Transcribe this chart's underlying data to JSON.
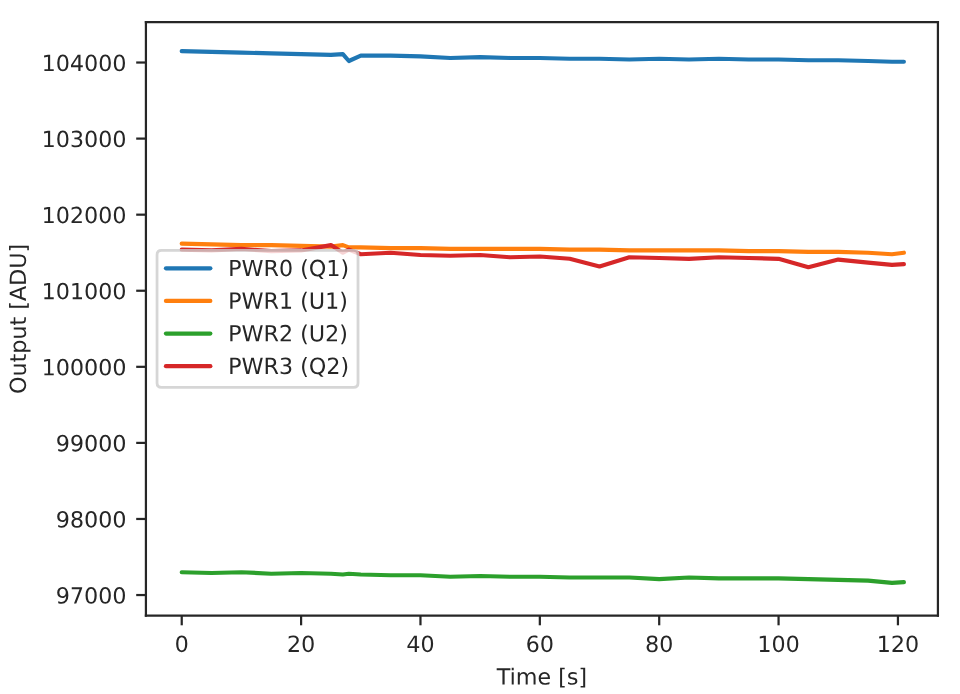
{
  "chart_data": {
    "type": "line",
    "xlabel": "Time [s]",
    "ylabel": "Output [ADU]",
    "xlim": [
      -6,
      126.7
    ],
    "ylim": [
      96730,
      104530
    ],
    "xticks": [
      0,
      20,
      40,
      60,
      80,
      100,
      120
    ],
    "yticks": [
      97000,
      98000,
      99000,
      100000,
      101000,
      102000,
      103000,
      104000
    ],
    "legend": "left",
    "grid": false,
    "x": [
      0,
      5,
      10,
      15,
      20,
      25,
      27,
      28,
      30,
      35,
      40,
      45,
      50,
      55,
      60,
      65,
      70,
      75,
      80,
      85,
      90,
      95,
      100,
      105,
      110,
      115,
      119,
      121
    ],
    "series": [
      {
        "name": "PWR0 (Q1)",
        "color": "#1f77b4",
        "values": [
          104150,
          104140,
          104130,
          104120,
          104110,
          104100,
          104110,
          104020,
          104090,
          104090,
          104080,
          104060,
          104070,
          104060,
          104060,
          104050,
          104050,
          104040,
          104050,
          104040,
          104050,
          104040,
          104040,
          104030,
          104030,
          104020,
          104010,
          104010
        ]
      },
      {
        "name": "PWR1 (U1)",
        "color": "#ff7f0e",
        "values": [
          101620,
          101610,
          101600,
          101600,
          101590,
          101580,
          101600,
          101570,
          101570,
          101560,
          101560,
          101550,
          101550,
          101550,
          101550,
          101540,
          101540,
          101530,
          101530,
          101530,
          101530,
          101520,
          101520,
          101510,
          101510,
          101500,
          101480,
          101500
        ]
      },
      {
        "name": "PWR2 (U2)",
        "color": "#2ca02c",
        "values": [
          97300,
          97290,
          97300,
          97280,
          97290,
          97280,
          97270,
          97280,
          97270,
          97260,
          97260,
          97240,
          97250,
          97240,
          97240,
          97230,
          97230,
          97230,
          97210,
          97230,
          97220,
          97220,
          97220,
          97210,
          97200,
          97190,
          97160,
          97170
        ]
      },
      {
        "name": "PWR3 (Q2)",
        "color": "#d62728",
        "values": [
          101540,
          101530,
          101550,
          101520,
          101530,
          101600,
          101500,
          101540,
          101480,
          101500,
          101470,
          101460,
          101470,
          101440,
          101450,
          101420,
          101320,
          101440,
          101430,
          101420,
          101440,
          101430,
          101420,
          101310,
          101410,
          101370,
          101340,
          101350
        ]
      }
    ]
  }
}
